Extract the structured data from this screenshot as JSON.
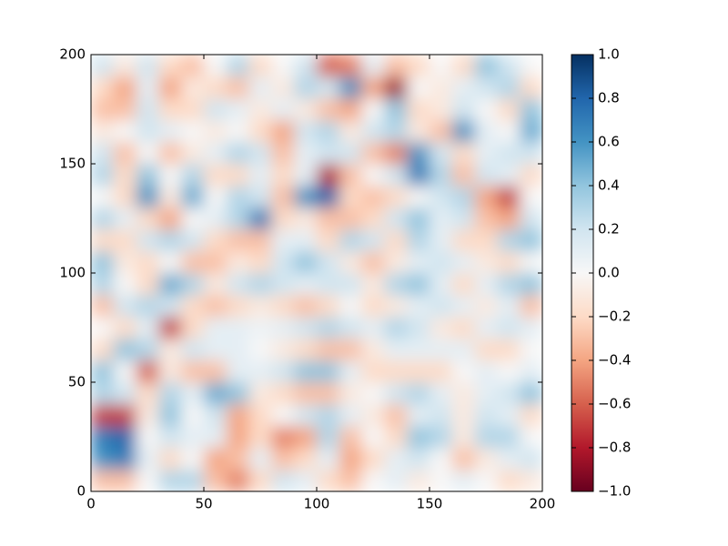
{
  "chart_data": {
    "type": "heatmap",
    "xlim": [
      0,
      200
    ],
    "ylim": [
      0,
      200
    ],
    "xticks": [
      0,
      50,
      100,
      150,
      200
    ],
    "yticks": [
      0,
      50,
      100,
      150,
      200
    ],
    "clim": [
      -1,
      1
    ],
    "cticks": [
      {
        "value": -1,
        "label": "−1.0"
      },
      {
        "value": -0.8,
        "label": "−0.8"
      },
      {
        "value": -0.6,
        "label": "−0.6"
      },
      {
        "value": -0.4,
        "label": "−0.4"
      },
      {
        "value": -0.2,
        "label": "−0.2"
      },
      {
        "value": 0,
        "label": "0.0"
      },
      {
        "value": 0.2,
        "label": "0.2"
      },
      {
        "value": 0.4,
        "label": "0.4"
      },
      {
        "value": 0.6,
        "label": "0.6"
      },
      {
        "value": 0.8,
        "label": "0.8"
      },
      {
        "value": 1,
        "label": "1.0"
      }
    ],
    "colormap": [
      "#67001f",
      "#b2182b",
      "#d6604d",
      "#f4a582",
      "#fddbc7",
      "#f7f7f7",
      "#d1e5f0",
      "#92c5de",
      "#4393c3",
      "#2166ac",
      "#053061"
    ],
    "z": [
      [
        -0.3,
        -0.3,
        0,
        0.3,
        0.3,
        -0.3,
        -0.5,
        -0.2,
        0.2,
        0.1,
        -0.2,
        -0.3,
        0,
        0.1,
        -0.1,
        0,
        0.1,
        0,
        -0.2,
        -0.1
      ],
      [
        0.6,
        0.7,
        0.1,
        -0.2,
        0,
        -0.4,
        -0.3,
        0.1,
        -0.3,
        -0.2,
        0.1,
        -0.4,
        -0.2,
        0.1,
        0.2,
        0,
        -0.3,
        -0.1,
        0.1,
        0.2
      ],
      [
        0.7,
        0.8,
        0,
        0.2,
        0.1,
        0.1,
        -0.4,
        -0.2,
        -0.5,
        -0.4,
        0.3,
        -0.3,
        0,
        -0.2,
        0.4,
        0.3,
        -0.1,
        0.3,
        0.3,
        0
      ],
      [
        -0.7,
        -0.7,
        -0.1,
        0.4,
        0,
        0.2,
        -0.4,
        -0.2,
        0,
        0.2,
        0.3,
        0.1,
        -0.1,
        -0.3,
        0.1,
        0.2,
        -0.1,
        0.2,
        0.1,
        -0.2
      ],
      [
        0.3,
        0.2,
        -0.2,
        0.3,
        0.1,
        0.5,
        0.4,
        -0.1,
        -0.2,
        -0.3,
        -0.3,
        -0.1,
        0,
        0.2,
        0.3,
        0.1,
        -0.1,
        0.1,
        0.2,
        0.4
      ],
      [
        0.4,
        0,
        -0.6,
        -0.1,
        -0.3,
        -0.3,
        0.1,
        0.1,
        0.2,
        0.4,
        0.4,
        0.1,
        -0.2,
        -0.2,
        -0.2,
        -0.2,
        0,
        0.1,
        0,
        0.1
      ],
      [
        -0.2,
        0.4,
        0.3,
        -0.1,
        0.2,
        0.1,
        0.1,
        0,
        -0.1,
        -0.2,
        -0.3,
        -0.3,
        -0.1,
        0.1,
        0.1,
        0.1,
        0.1,
        -0.2,
        -0.2,
        0
      ],
      [
        0,
        -0.2,
        0.1,
        -0.7,
        -0.2,
        0.1,
        0.1,
        0.05,
        0.1,
        0.2,
        0.3,
        0.2,
        0.1,
        0.3,
        0.2,
        -0.1,
        -0.2,
        0.1,
        0.2,
        0.1
      ],
      [
        -0.3,
        0.2,
        0.3,
        0.2,
        -0.2,
        -0.3,
        -0.2,
        -0.1,
        -0.2,
        -0.3,
        -0.2,
        0,
        -0.2,
        -0.1,
        0.1,
        0.2,
        0.1,
        -0.1,
        0.1,
        -0.3
      ],
      [
        0.3,
        0,
        -0.2,
        0.5,
        0.3,
        -0.1,
        0.2,
        0.3,
        0.2,
        0.1,
        0.2,
        0.2,
        -0.1,
        0.3,
        0.4,
        0.1,
        -0.2,
        0.1,
        0.3,
        0.4
      ],
      [
        0.4,
        -0.1,
        -0.2,
        0,
        -0.3,
        -0.3,
        -0.1,
        -0.2,
        0.2,
        0.4,
        0.2,
        -0.1,
        -0.3,
        -0.1,
        0.1,
        0.2,
        0.1,
        -0.1,
        -0.2,
        0
      ],
      [
        -0.2,
        -0.2,
        0.2,
        0.3,
        0.2,
        -0.2,
        -0.3,
        -0.3,
        0.1,
        0.1,
        -0.2,
        0.3,
        0.2,
        -0.2,
        0.3,
        0.1,
        -0.2,
        -0.2,
        0.3,
        0.4
      ],
      [
        0.3,
        0.1,
        -0.2,
        -0.4,
        0,
        0.1,
        0.3,
        0.7,
        -0.2,
        -0.1,
        -0.3,
        -0.3,
        -0.2,
        0.2,
        0.4,
        0.1,
        0.2,
        -0.3,
        -0.4,
        0.2
      ],
      [
        0,
        -0.2,
        0.6,
        -0.1,
        0.5,
        0,
        0.3,
        0.2,
        -0.3,
        0.6,
        0.8,
        -0.2,
        -0.3,
        -0.2,
        0,
        0.2,
        0.3,
        -0.4,
        -0.7,
        0
      ],
      [
        0.3,
        -0.2,
        0.4,
        0,
        0.3,
        -0.2,
        -0.2,
        0.1,
        -0.2,
        0.1,
        -0.8,
        -0.3,
        0,
        0.2,
        0.7,
        0.3,
        -0.3,
        0.2,
        0.1,
        -0.2
      ],
      [
        0.2,
        -0.3,
        0,
        -0.3,
        -0.1,
        0.1,
        0.3,
        0.2,
        -0.3,
        0.1,
        0.2,
        0.2,
        -0.3,
        -0.5,
        0.6,
        0.2,
        -0.2,
        0.1,
        0.2,
        0.2
      ],
      [
        -0.1,
        0,
        0.2,
        0.1,
        0,
        -0.1,
        0,
        -0.2,
        -0.4,
        0.2,
        0.3,
        -0.1,
        0.2,
        0.3,
        -0.1,
        -0.3,
        0.6,
        0.1,
        0,
        0.5
      ],
      [
        -0.3,
        -0.3,
        0.2,
        -0.2,
        -0.2,
        0.2,
        0.1,
        -0.1,
        0.1,
        -0.1,
        -0.3,
        -0.4,
        0,
        0.4,
        -0.2,
        -0.1,
        0.2,
        0,
        -0.2,
        0.4
      ],
      [
        -0.2,
        -0.4,
        0.1,
        -0.4,
        -0.1,
        -0.2,
        -0.3,
        0.1,
        -0.1,
        0.3,
        0.2,
        0.6,
        -0.4,
        -0.85,
        0,
        -0.1,
        0.1,
        0.2,
        0.3,
        -0.2
      ],
      [
        0.2,
        -0.1,
        0.2,
        -0.2,
        -0.3,
        0,
        0.3,
        -0.2,
        0,
        0.2,
        -0.6,
        -0.5,
        0.1,
        -0.3,
        -0.2,
        0,
        -0.2,
        0.4,
        0.2,
        0
      ]
    ]
  }
}
